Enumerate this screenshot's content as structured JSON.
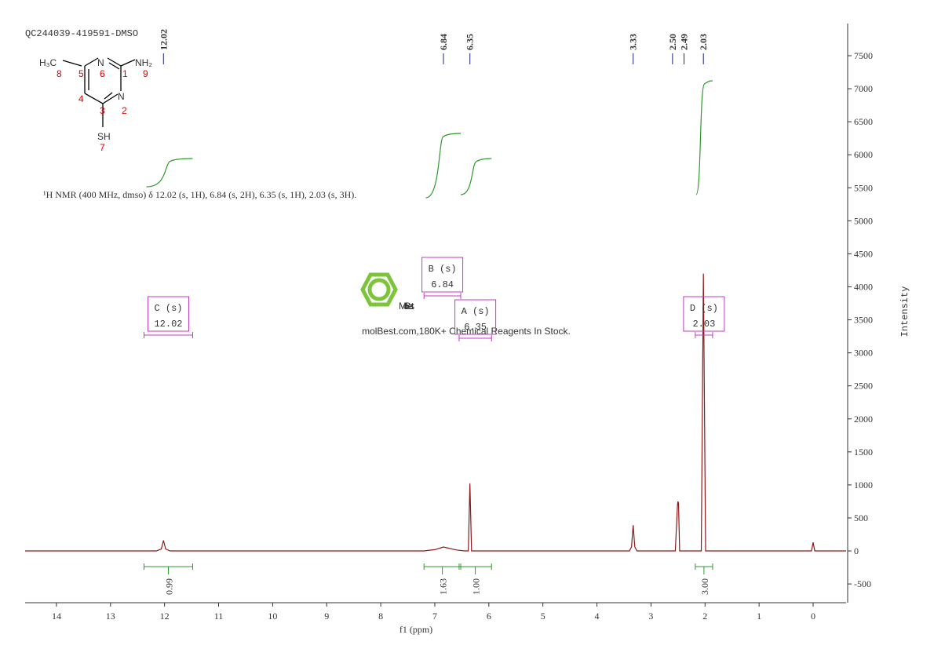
{
  "chart_data": {
    "type": "nmr",
    "title": "QC244039-419591-DMSO",
    "description": "¹H NMR (400 MHz, dmso) δ 12.02 (s, 1H), 6.84 (s, 2H), 6.35 (s, 1H), 2.03 (s, 3H).",
    "x_label": "f1 (ppm)",
    "y_label": "Intensity",
    "watermark": "MolBest",
    "watermark_subtitle": "molBest.com,180K+ Chemical Reagents In Stock.",
    "xlim": [
      14.58,
      -0.61
    ],
    "ylim": [
      -784,
      7987
    ],
    "xticks": [
      14,
      13,
      12,
      11,
      10,
      9,
      8,
      7,
      6,
      5,
      4,
      3,
      2,
      1,
      0
    ],
    "yticks": [
      -500,
      0,
      500,
      1000,
      1500,
      2000,
      2500,
      3000,
      3500,
      4000,
      4500,
      5000,
      5500,
      6000,
      6500,
      7000,
      7500
    ],
    "series": [
      {
        "name": "spectrum",
        "color": "#8b1a1a",
        "x": [
          14.58,
          12.15,
          12.06,
          12.02,
          11.98,
          11.9,
          7.2,
          7.0,
          6.84,
          6.6,
          6.45,
          6.38,
          6.35,
          6.32,
          3.4,
          3.36,
          3.33,
          3.3,
          3.26,
          2.55,
          2.51,
          2.5,
          2.49,
          2.47,
          2.07,
          2.03,
          1.99,
          0.03,
          0.0,
          -0.03,
          -0.61
        ],
        "values": [
          0,
          0,
          30,
          160,
          30,
          0,
          0,
          20,
          60,
          15,
          0,
          0,
          1020,
          0,
          0,
          60,
          390,
          60,
          0,
          0,
          700,
          750,
          720,
          0,
          0,
          4200,
          0,
          0,
          130,
          0,
          0
        ]
      }
    ],
    "peak_labels": [
      {
        "value": 12.02,
        "label": "12.02"
      },
      {
        "value": 6.84,
        "label": "6.84"
      },
      {
        "value": 6.35,
        "label": "6.35"
      },
      {
        "value": 3.33,
        "label": "3.33"
      },
      {
        "value": 2.5,
        "label": "2.50"
      },
      {
        "value": 2.49,
        "label": "2.49"
      },
      {
        "value": 2.03,
        "label": "2.03"
      }
    ],
    "multiplets": [
      {
        "name": "C (s)",
        "shift": 12.02,
        "range": [
          12.38,
          11.48
        ]
      },
      {
        "name": "B (s)",
        "shift": 6.84,
        "range": [
          7.2,
          6.52
        ]
      },
      {
        "name": "A (s)",
        "shift": 6.35,
        "range": [
          6.55,
          5.95
        ]
      },
      {
        "name": "D (s)",
        "shift": 2.03,
        "range": [
          2.18,
          1.86
        ]
      }
    ],
    "integrals": [
      {
        "value": 0.99,
        "range": [
          12.38,
          11.48
        ]
      },
      {
        "value": 1.63,
        "range": [
          7.2,
          6.52
        ]
      },
      {
        "value": 1.0,
        "label": "1.00",
        "range": [
          6.55,
          5.95
        ]
      },
      {
        "value": 3.0,
        "label": "3.00",
        "range": [
          2.18,
          1.86
        ]
      }
    ]
  },
  "structure": {
    "atoms": [
      "H₃C",
      "N",
      "NH₂",
      "N",
      "SH"
    ],
    "numbers": [
      "8",
      "5",
      "6",
      "1",
      "9",
      "4",
      "3",
      "2",
      "7"
    ]
  }
}
